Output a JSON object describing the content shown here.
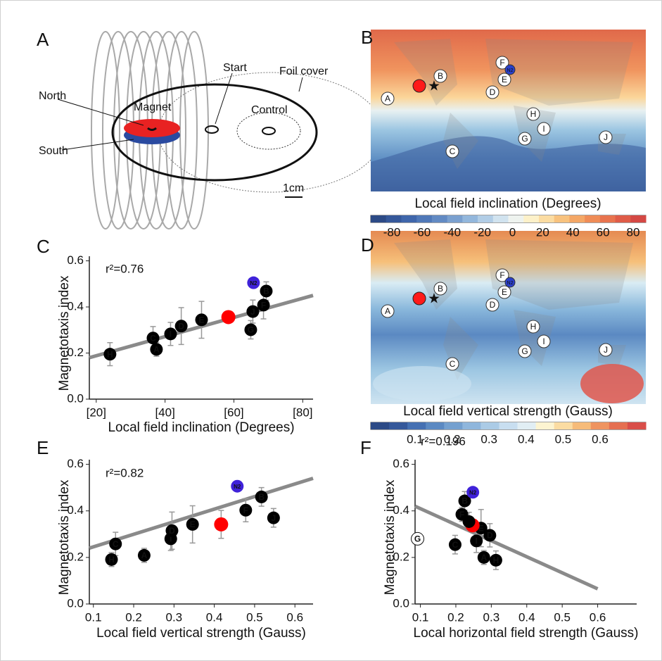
{
  "panel_labels": [
    "A",
    "B",
    "C",
    "D",
    "E",
    "F"
  ],
  "diagram": {
    "north": "North",
    "magnet": "Magnet",
    "south": "South",
    "start": "Start",
    "foil_cover": "Foil cover",
    "control": "Control",
    "scale": "1cm"
  },
  "maps": [
    {
      "caption": "Local field inclination (Degrees)",
      "colorbar_ticks": [
        -80,
        -60,
        -40,
        -20,
        0,
        20,
        40,
        60,
        80
      ],
      "points": [
        "A",
        "B",
        "C",
        "D",
        "E",
        "F",
        "N2",
        "G",
        "H",
        "I",
        "J"
      ]
    },
    {
      "caption": "Local field vertical strength (Gauss)",
      "colorbar_ticks": [
        0.1,
        0.2,
        0.3,
        0.4,
        0.5,
        0.6
      ],
      "points": [
        "A",
        "B",
        "C",
        "D",
        "E",
        "F",
        "N2",
        "G",
        "H",
        "I",
        "J"
      ]
    }
  ],
  "chart_data": [
    {
      "type": "scatter",
      "xlabel": "Local field inclination (Degrees)",
      "ylabel": "Magnetotaxis index",
      "annotation": "r²=0.76",
      "xlim": [
        18,
        83
      ],
      "ylim": [
        0,
        0.62
      ],
      "xticks": [
        {
          "value": 20,
          "label": "[20]"
        },
        {
          "value": 40,
          "label": "[40]"
        },
        {
          "value": 60,
          "label": "[60]"
        },
        {
          "value": 80,
          "label": "[80]"
        }
      ],
      "yticks": [
        {
          "value": 0,
          "label": "0.0"
        },
        0.2,
        0.4,
        0.6
      ],
      "point_labels": [
        "H",
        "C",
        "A",
        "I",
        "D",
        "E",
        null,
        "G",
        "J",
        "F",
        "B",
        "N2"
      ],
      "x": [
        24,
        36.5,
        37.5,
        41.6,
        44.7,
        50.6,
        58.4,
        64.9,
        65.5,
        68.6,
        69.4,
        65.7
      ],
      "values": [
        0.195,
        0.265,
        0.216,
        0.283,
        0.317,
        0.344,
        0.356,
        0.301,
        0.38,
        0.408,
        0.469,
        0.505
      ],
      "errors": [
        0.05,
        0.05,
        0.03,
        0.05,
        0.08,
        0.08,
        null,
        0.04,
        0.05,
        0.06,
        0.04,
        null
      ],
      "point_colors": [
        "#000000",
        "#000000",
        "#000000",
        "#000000",
        "#000000",
        "#000000",
        "#ff0000",
        "#000000",
        "#000000",
        "#000000",
        "#000000",
        "#3f22d9"
      ],
      "fit": {
        "x": [
          18,
          83
        ],
        "y": [
          0.18,
          0.45
        ],
        "color": "#8a8a8a"
      }
    },
    {
      "type": "scatter",
      "xlabel": "Local field vertical strength (Gauss)",
      "ylabel": "Magnetotaxis index",
      "annotation": "r²=0.82",
      "xlim": [
        0.09,
        0.645
      ],
      "ylim": [
        0,
        0.62
      ],
      "xticks": [
        0.1,
        0.2,
        0.3,
        0.4,
        0.5,
        0.6
      ],
      "yticks": [
        {
          "value": 0,
          "label": "0.0"
        },
        0.2,
        0.4,
        0.6
      ],
      "point_labels": [
        "C",
        "H",
        "A",
        "I",
        "D",
        "E",
        null,
        "F",
        "B",
        "J",
        "N2"
      ],
      "x": [
        0.155,
        0.145,
        0.226,
        0.292,
        0.295,
        0.346,
        0.417,
        0.478,
        0.517,
        0.547,
        0.457
      ],
      "values": [
        0.258,
        0.191,
        0.209,
        0.28,
        0.315,
        0.342,
        0.342,
        0.403,
        0.46,
        0.37,
        0.506
      ],
      "errors": [
        0.05,
        0.03,
        0.03,
        0.05,
        0.08,
        0.08,
        0.06,
        0.05,
        0.04,
        0.04,
        null
      ],
      "point_colors": [
        "#000000",
        "#000000",
        "#000000",
        "#000000",
        "#000000",
        "#000000",
        "#ff0000",
        "#000000",
        "#000000",
        "#000000",
        "#3f22d9"
      ],
      "fit": {
        "x": [
          0.09,
          0.645
        ],
        "y": [
          0.24,
          0.54
        ],
        "color": "#8a8a8a"
      }
    },
    {
      "type": "scatter",
      "xlabel": "Local horizontal field strength (Gauss)",
      "ylabel": "Magnetotaxis index",
      "annotation": "r²=0.196",
      "xlim": [
        0.085,
        0.71
      ],
      "ylim": [
        0,
        0.62
      ],
      "xticks": [
        0.1,
        0.2,
        0.3,
        0.4,
        0.5,
        0.6
      ],
      "yticks": [
        {
          "value": 0,
          "label": "0.0"
        },
        0.2,
        0.4,
        0.6
      ],
      "point_labels": [
        "G",
        "C",
        "I",
        "A",
        "H",
        "D",
        "E",
        null,
        null,
        "F",
        "B",
        "N2"
      ],
      "x": [
        0.092,
        0.198,
        0.258,
        0.279,
        0.313,
        0.296,
        0.271,
        0.247,
        0.237,
        0.217,
        0.225,
        0.248
      ],
      "values": [
        0.28,
        0.255,
        0.271,
        0.2,
        0.188,
        0.295,
        0.326,
        0.338,
        0.354,
        0.385,
        0.443,
        0.48
      ],
      "errors": [
        null,
        0.04,
        0.05,
        0.03,
        0.04,
        0.05,
        0.08,
        null,
        0.04,
        0.03,
        0.04,
        null
      ],
      "point_colors": [
        "#ffffff",
        "#000000",
        "#000000",
        "#000000",
        "#000000",
        "#000000",
        "#000000",
        "#ff0000",
        "#000000",
        "#000000",
        "#000000",
        "#3f22d9"
      ],
      "fit": {
        "x": [
          0.085,
          0.6
        ],
        "y": [
          0.42,
          0.065
        ],
        "color": "#8a8a8a"
      }
    }
  ]
}
